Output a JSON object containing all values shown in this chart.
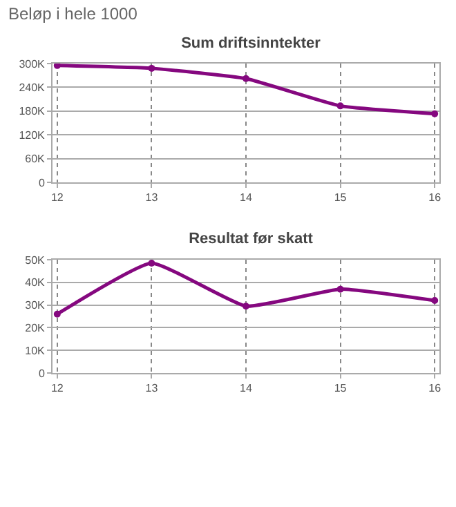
{
  "chart_data": [
    {
      "type": "line",
      "title": "Sum driftsinntekter",
      "annotations": [
        "Beløp i hele 1000"
      ],
      "x": [
        12,
        13,
        14,
        15,
        16
      ],
      "series": [
        {
          "color": "#85087f",
          "values": [
            295000,
            288000,
            262000,
            193000,
            173000
          ]
        }
      ],
      "xlim": [
        11.95,
        16.05
      ],
      "xticks": [
        12,
        13,
        14,
        15,
        16
      ],
      "ylim": [
        0,
        300000
      ],
      "yticks": [
        0,
        {
          "value": 60000,
          "label": "60K"
        },
        {
          "value": 120000,
          "label": "120K"
        },
        {
          "value": 180000,
          "label": "180K"
        },
        {
          "value": 240000,
          "label": "240K"
        },
        {
          "value": 300000,
          "label": "300K"
        }
      ],
      "grid": true,
      "marker": "circle",
      "line_style": "solid"
    },
    {
      "type": "line",
      "title": "Resultat før skatt",
      "x": [
        12,
        13,
        14,
        15,
        16
      ],
      "series": [
        {
          "color": "#85087f",
          "values": [
            26000,
            48500,
            29500,
            37000,
            32000
          ]
        }
      ],
      "xlim": [
        11.95,
        16.05
      ],
      "xticks": [
        12,
        13,
        14,
        15,
        16
      ],
      "ylim": [
        0,
        50000
      ],
      "yticks": [
        0,
        {
          "value": 10000,
          "label": "10K"
        },
        {
          "value": 20000,
          "label": "20K"
        },
        {
          "value": 30000,
          "label": "30K"
        },
        {
          "value": 40000,
          "label": "40K"
        },
        {
          "value": 50000,
          "label": "50K"
        }
      ],
      "grid": true,
      "marker": "circle",
      "line_style": "solid"
    }
  ]
}
